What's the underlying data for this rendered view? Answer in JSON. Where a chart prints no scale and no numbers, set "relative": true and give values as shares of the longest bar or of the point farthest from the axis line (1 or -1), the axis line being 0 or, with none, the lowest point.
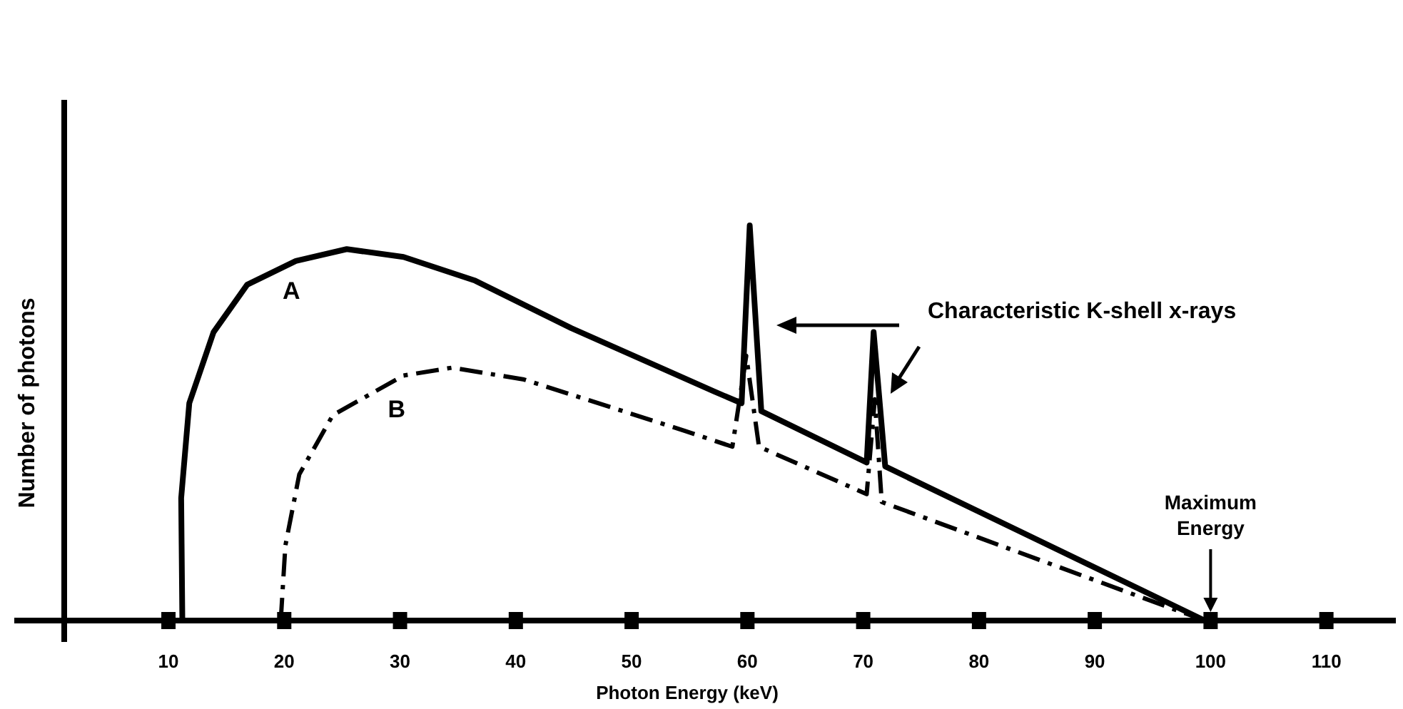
{
  "chart_data": {
    "type": "line",
    "relative": true,
    "xlabel": "Photon Energy (keV)",
    "ylabel": "Number of photons",
    "xlim": [
      1,
      116
    ],
    "xticks": [
      10,
      20,
      30,
      40,
      50,
      60,
      70,
      80,
      90,
      100,
      110
    ],
    "grid": false,
    "series": [
      {
        "name": "A",
        "color": "#000000",
        "line_style": "solid",
        "x": [
          11.2,
          11.1,
          11.8,
          13.9,
          16.8,
          21.0,
          25.4,
          30.3,
          36.5,
          44.8,
          57.1,
          59.5,
          60.2,
          61.2,
          70.3,
          70.9,
          71.9,
          99.5
        ],
        "values": [
          0,
          0.31,
          0.55,
          0.73,
          0.85,
          0.91,
          0.94,
          0.92,
          0.86,
          0.74,
          0.58,
          0.55,
          1.0,
          0.53,
          0.4,
          0.73,
          0.39,
          0
        ]
      },
      {
        "name": "B",
        "color": "#000000",
        "line_style": "dashed",
        "x": [
          19.7,
          20.1,
          21.3,
          24.2,
          30.3,
          34.5,
          40.7,
          54.6,
          58.7,
          59.9,
          61.0,
          70.3,
          71.0,
          71.6,
          99.5
        ],
        "values": [
          0,
          0.19,
          0.37,
          0.52,
          0.62,
          0.64,
          0.61,
          0.48,
          0.44,
          0.67,
          0.44,
          0.32,
          0.56,
          0.3,
          0
        ]
      }
    ],
    "annotations": [
      "Characteristic K-shell x-rays",
      "Maximum Energy"
    ]
  }
}
